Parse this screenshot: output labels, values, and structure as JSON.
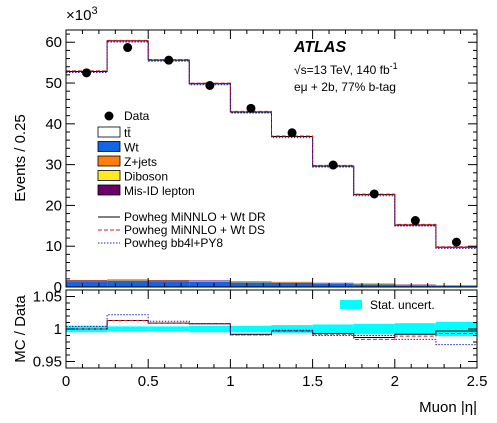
{
  "chart_data": [
    {
      "type": "histogram",
      "panel": "main",
      "experiment": "ATLAS",
      "energy_text": "√s=13 TeV, 140 fb",
      "lumi_sup": "-1",
      "selection_text": "eμ + 2b, 77% b-tag",
      "ylabel": "Events / 0.25",
      "yscale_text": "×10",
      "yscale_exp": "3",
      "ylim": [
        0,
        63
      ],
      "yticks": [
        0,
        10,
        20,
        30,
        40,
        50,
        60
      ],
      "x_edges": [
        0,
        0.25,
        0.5,
        0.75,
        1.0,
        1.25,
        1.5,
        1.75,
        2.0,
        2.25,
        2.5
      ],
      "data_points": [
        52.5,
        58.7,
        55.6,
        49.4,
        43.8,
        37.8,
        29.9,
        22.8,
        16.3,
        11.0
      ],
      "stack": [
        {
          "key": "ttbar",
          "label": "tt̄",
          "color": "#ffffff",
          "values": [
            51.1,
            58.5,
            53.9,
            48.2,
            41.5,
            35.6,
            28.6,
            21.8,
            14.6,
            9.3
          ]
        },
        {
          "key": "wt",
          "label": "Wt",
          "color": "#1464e6",
          "values": [
            1.5,
            1.6,
            1.5,
            1.4,
            1.2,
            1.1,
            0.9,
            0.7,
            0.5,
            0.35
          ]
        },
        {
          "key": "zjets",
          "label": "Z+jets",
          "color": "#ff7f0e",
          "values": [
            0.05,
            0.05,
            0.05,
            0.05,
            0.05,
            0.04,
            0.04,
            0.03,
            0.02,
            0.02
          ]
        },
        {
          "key": "diboson",
          "label": "Diboson",
          "color": "#ffeb1e",
          "values": [
            0.02,
            0.02,
            0.02,
            0.02,
            0.02,
            0.02,
            0.02,
            0.02,
            0.01,
            0.01
          ]
        },
        {
          "key": "misid",
          "label": "Mis-ID lepton",
          "color": "#6b006b",
          "values": [
            0.15,
            0.15,
            0.15,
            0.15,
            0.13,
            0.12,
            0.1,
            0.08,
            0.06,
            0.05
          ]
        }
      ],
      "lines": [
        {
          "key": "dr",
          "label": "Powheg MiNNLO + Wt DR",
          "color": "#000000",
          "style": "solid"
        },
        {
          "key": "ds",
          "label": "Powheg MiNNLO + Wt DS",
          "color": "#e31a1c",
          "style": "dashed"
        },
        {
          "key": "bb4l",
          "label": "Powheg bb4l+PY8",
          "color": "#1f1fd0",
          "style": "dotted"
        }
      ],
      "data_label": "Data",
      "legend_placement": "left"
    },
    {
      "type": "ratio",
      "panel": "ratio",
      "ylabel": "MC / Data",
      "xlabel": "Muon |η|",
      "ylim": [
        0.94,
        1.06
      ],
      "yticks": [
        0.95,
        1,
        1.05
      ],
      "ytick_labels": [
        "0.95",
        "1",
        "1.05"
      ],
      "xlim": [
        0,
        2.5
      ],
      "xticks": [
        0,
        0.5,
        1,
        1.5,
        2,
        2.5
      ],
      "xtick_labels": [
        "0",
        "0.5",
        "1",
        "1.5",
        "2",
        "2.5"
      ],
      "x_edges": [
        0,
        0.25,
        0.5,
        0.75,
        1.0,
        1.25,
        1.5,
        1.75,
        2.0,
        2.25,
        2.5
      ],
      "stat_band": {
        "label": "Stat. uncert.",
        "color": "#00ffff",
        "lo": [
          0.995,
          0.996,
          0.996,
          0.995,
          0.995,
          0.994,
          0.993,
          0.992,
          0.991,
          0.989
        ],
        "hi": [
          1.005,
          1.004,
          1.004,
          1.005,
          1.005,
          1.006,
          1.007,
          1.008,
          1.009,
          1.011
        ]
      },
      "ratios": [
        {
          "key": "dr",
          "values": [
            1.0,
            1.013,
            1.009,
            1.008,
            0.992,
            0.997,
            0.993,
            0.987,
            0.992,
            0.997
          ]
        },
        {
          "key": "ds",
          "values": [
            1.0,
            1.013,
            1.009,
            1.008,
            0.991,
            0.997,
            0.992,
            0.984,
            0.989,
            0.993
          ]
        },
        {
          "key": "bb4l",
          "values": [
            1.004,
            1.022,
            1.012,
            1.008,
            0.991,
            0.998,
            0.99,
            0.99,
            0.984,
            0.976
          ]
        }
      ]
    }
  ]
}
